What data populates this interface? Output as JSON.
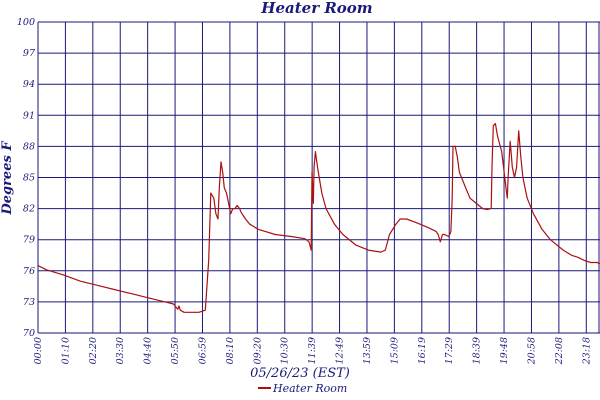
{
  "chart_data": {
    "type": "line",
    "title": "Heater Room",
    "xlabel": "05/26/23 (EST)",
    "ylabel": "Degrees F",
    "ylim": [
      70,
      100
    ],
    "y_ticks": [
      "100",
      "97",
      "94",
      "91",
      "88",
      "85",
      "82",
      "79",
      "76",
      "73",
      "70"
    ],
    "x_ticks": [
      "00:00",
      "01:10",
      "02:20",
      "03:30",
      "04:40",
      "05:50",
      "06:59",
      "08:10",
      "09:20",
      "10:30",
      "11:39",
      "12:49",
      "13:59",
      "15:09",
      "16:19",
      "17:29",
      "18:39",
      "19:48",
      "20:58",
      "22:08",
      "23:18"
    ],
    "grid": true,
    "legend_position": "bottom-center",
    "colors": {
      "series": "#aa1111",
      "grid": "#1a1a7a",
      "text": "#1a1a7a"
    },
    "series": [
      {
        "name": "Heater Room",
        "points": [
          [
            0,
            76.5
          ],
          [
            20,
            76.1
          ],
          [
            60,
            75.6
          ],
          [
            100,
            75.0
          ],
          [
            140,
            74.6
          ],
          [
            180,
            74.2
          ],
          [
            220,
            73.8
          ],
          [
            260,
            73.4
          ],
          [
            300,
            73.0
          ],
          [
            320,
            72.8
          ],
          [
            330,
            72.3
          ],
          [
            333,
            72.6
          ],
          [
            336,
            72.2
          ],
          [
            345,
            72.0
          ],
          [
            360,
            72.0
          ],
          [
            380,
            72.0
          ],
          [
            395,
            72.2
          ],
          [
            403,
            77.0
          ],
          [
            408,
            83.5
          ],
          [
            415,
            83.0
          ],
          [
            420,
            81.5
          ],
          [
            425,
            81.0
          ],
          [
            428,
            84.0
          ],
          [
            432,
            86.5
          ],
          [
            436,
            85.5
          ],
          [
            440,
            84.0
          ],
          [
            445,
            83.5
          ],
          [
            450,
            82.5
          ],
          [
            455,
            81.5
          ],
          [
            460,
            82.0
          ],
          [
            465,
            82.0
          ],
          [
            470,
            82.3
          ],
          [
            476,
            82.0
          ],
          [
            480,
            81.6
          ],
          [
            490,
            81.0
          ],
          [
            500,
            80.5
          ],
          [
            520,
            80.0
          ],
          [
            560,
            79.5
          ],
          [
            600,
            79.3
          ],
          [
            630,
            79.1
          ],
          [
            640,
            78.8
          ],
          [
            645,
            78.0
          ],
          [
            647,
            85.5
          ],
          [
            650,
            82.5
          ],
          [
            652,
            86.0
          ],
          [
            655,
            87.5
          ],
          [
            660,
            86.0
          ],
          [
            670,
            83.5
          ],
          [
            680,
            82.0
          ],
          [
            700,
            80.5
          ],
          [
            720,
            79.5
          ],
          [
            750,
            78.5
          ],
          [
            780,
            78.0
          ],
          [
            810,
            77.8
          ],
          [
            820,
            78.0
          ],
          [
            830,
            79.5
          ],
          [
            845,
            80.5
          ],
          [
            855,
            81.0
          ],
          [
            870,
            81.0
          ],
          [
            890,
            80.7
          ],
          [
            920,
            80.2
          ],
          [
            940,
            79.8
          ],
          [
            945,
            79.5
          ],
          [
            950,
            78.8
          ],
          [
            955,
            79.5
          ],
          [
            960,
            79.5
          ],
          [
            970,
            79.3
          ],
          [
            975,
            79.8
          ],
          [
            978,
            83.0
          ],
          [
            980,
            88.0
          ],
          [
            985,
            88.0
          ],
          [
            990,
            87.0
          ],
          [
            995,
            85.5
          ],
          [
            1000,
            85.0
          ],
          [
            1010,
            84.0
          ],
          [
            1020,
            83.0
          ],
          [
            1035,
            82.5
          ],
          [
            1050,
            82.0
          ],
          [
            1060,
            81.9
          ],
          [
            1070,
            82.0
          ],
          [
            1072,
            86.0
          ],
          [
            1075,
            90.0
          ],
          [
            1080,
            90.2
          ],
          [
            1085,
            89.0
          ],
          [
            1095,
            87.5
          ],
          [
            1105,
            84.0
          ],
          [
            1108,
            83.0
          ],
          [
            1110,
            85.0
          ],
          [
            1115,
            88.5
          ],
          [
            1120,
            86.0
          ],
          [
            1125,
            85.0
          ],
          [
            1130,
            86.0
          ],
          [
            1135,
            89.5
          ],
          [
            1140,
            87.0
          ],
          [
            1145,
            85.0
          ],
          [
            1155,
            83.0
          ],
          [
            1170,
            81.5
          ],
          [
            1190,
            80.0
          ],
          [
            1210,
            79.0
          ],
          [
            1240,
            78.0
          ],
          [
            1260,
            77.5
          ],
          [
            1275,
            77.3
          ],
          [
            1290,
            77.0
          ],
          [
            1305,
            76.8
          ],
          [
            1320,
            76.8
          ],
          [
            1327,
            76.7
          ]
        ]
      }
    ]
  }
}
